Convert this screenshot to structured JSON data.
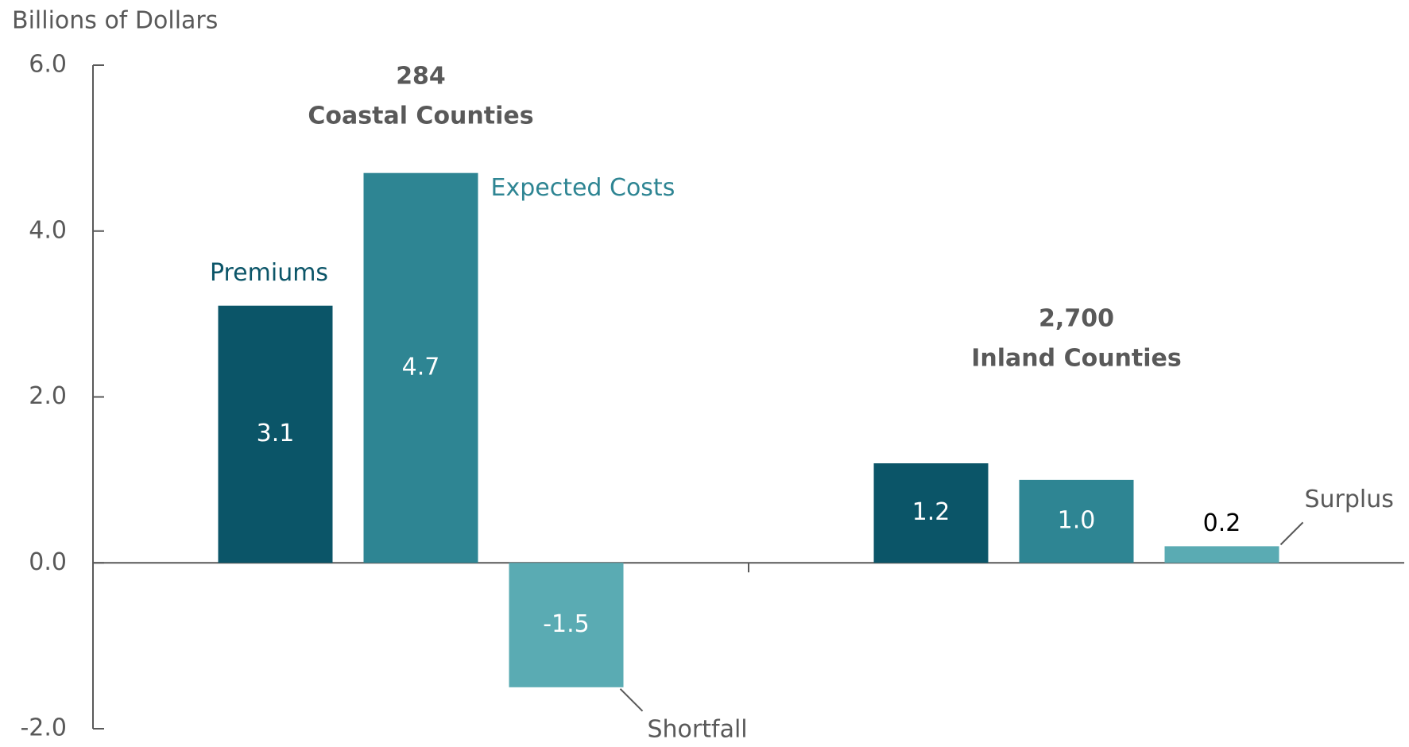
{
  "chart_data": {
    "type": "bar",
    "axis_title": "Billions of Dollars",
    "categories": [
      "Coastal Counties",
      "Inland Counties"
    ],
    "category_counts": [
      284,
      {
        "value": 2700,
        "label": "2,700"
      }
    ],
    "series": [
      {
        "name": "Premiums",
        "color": "#0b5568",
        "values": [
          3.1,
          1.2
        ]
      },
      {
        "name": "Expected Costs",
        "color": "#2e8593",
        "values": [
          4.7,
          1.0
        ],
        "value_labels": [
          "4.7",
          "1.0"
        ]
      },
      {
        "color": "#5aabb3",
        "values": [
          -1.5,
          0.2
        ],
        "annotations": [
          "Shortfall",
          "Surplus"
        ]
      }
    ],
    "ylim": [
      -2,
      6
    ],
    "yticks": [
      {
        "value": -2,
        "label": "-2.0"
      },
      {
        "value": 0,
        "label": "0.0"
      },
      {
        "value": 2,
        "label": "2.0"
      },
      {
        "value": 4,
        "label": "4.0"
      },
      {
        "value": 6,
        "label": "6.0"
      }
    ]
  }
}
